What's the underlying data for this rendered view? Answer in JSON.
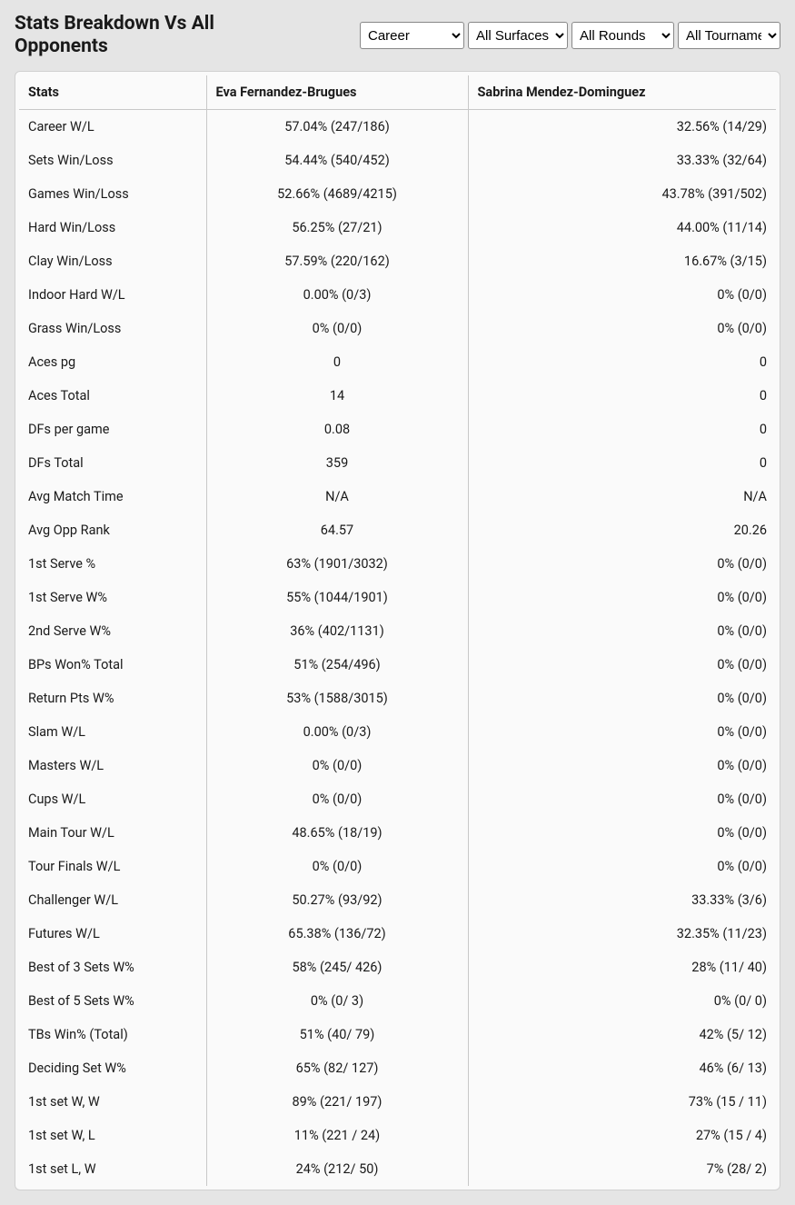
{
  "header": {
    "title": "Stats Breakdown Vs All Opponents"
  },
  "filters": {
    "career": {
      "selected": "Career",
      "options": [
        "Career"
      ]
    },
    "surface": {
      "selected": "All Surfaces",
      "options": [
        "All Surfaces"
      ]
    },
    "rounds": {
      "selected": "All Rounds",
      "options": [
        "All Rounds"
      ]
    },
    "tournaments": {
      "selected": "All Tournaments",
      "options": [
        "All Tournaments"
      ]
    }
  },
  "table": {
    "columns": {
      "stats": "Stats",
      "player1": "Eva Fernandez-Brugues",
      "player2": "Sabrina Mendez-Dominguez"
    },
    "rows": [
      {
        "stat": "Career W/L",
        "p1": "57.04% (247/186)",
        "p2": "32.56% (14/29)"
      },
      {
        "stat": "Sets Win/Loss",
        "p1": "54.44% (540/452)",
        "p2": "33.33% (32/64)"
      },
      {
        "stat": "Games Win/Loss",
        "p1": "52.66% (4689/4215)",
        "p2": "43.78% (391/502)"
      },
      {
        "stat": "Hard Win/Loss",
        "p1": "56.25% (27/21)",
        "p2": "44.00% (11/14)"
      },
      {
        "stat": "Clay Win/Loss",
        "p1": "57.59% (220/162)",
        "p2": "16.67% (3/15)"
      },
      {
        "stat": "Indoor Hard W/L",
        "p1": "0.00% (0/3)",
        "p2": "0% (0/0)"
      },
      {
        "stat": "Grass Win/Loss",
        "p1": "0% (0/0)",
        "p2": "0% (0/0)"
      },
      {
        "stat": "Aces pg",
        "p1": "0",
        "p2": "0"
      },
      {
        "stat": "Aces Total",
        "p1": "14",
        "p2": "0"
      },
      {
        "stat": "DFs per game",
        "p1": "0.08",
        "p2": "0"
      },
      {
        "stat": "DFs Total",
        "p1": "359",
        "p2": "0"
      },
      {
        "stat": "Avg Match Time",
        "p1": "N/A",
        "p2": "N/A"
      },
      {
        "stat": "Avg Opp Rank",
        "p1": "64.57",
        "p2": "20.26"
      },
      {
        "stat": "1st Serve %",
        "p1": "63% (1901/3032)",
        "p2": "0% (0/0)"
      },
      {
        "stat": "1st Serve W%",
        "p1": "55% (1044/1901)",
        "p2": "0% (0/0)"
      },
      {
        "stat": "2nd Serve W%",
        "p1": "36% (402/1131)",
        "p2": "0% (0/0)"
      },
      {
        "stat": "BPs Won% Total",
        "p1": "51% (254/496)",
        "p2": "0% (0/0)"
      },
      {
        "stat": "Return Pts W%",
        "p1": "53% (1588/3015)",
        "p2": "0% (0/0)"
      },
      {
        "stat": "Slam W/L",
        "p1": "0.00% (0/3)",
        "p2": "0% (0/0)"
      },
      {
        "stat": "Masters W/L",
        "p1": "0% (0/0)",
        "p2": "0% (0/0)"
      },
      {
        "stat": "Cups W/L",
        "p1": "0% (0/0)",
        "p2": "0% (0/0)"
      },
      {
        "stat": "Main Tour W/L",
        "p1": "48.65% (18/19)",
        "p2": "0% (0/0)"
      },
      {
        "stat": "Tour Finals W/L",
        "p1": "0% (0/0)",
        "p2": "0% (0/0)"
      },
      {
        "stat": "Challenger W/L",
        "p1": "50.27% (93/92)",
        "p2": "33.33% (3/6)"
      },
      {
        "stat": "Futures W/L",
        "p1": "65.38% (136/72)",
        "p2": "32.35% (11/23)"
      },
      {
        "stat": "Best of 3 Sets W%",
        "p1": "58% (245/ 426)",
        "p2": "28% (11/ 40)"
      },
      {
        "stat": "Best of 5 Sets W%",
        "p1": "0% (0/ 3)",
        "p2": "0% (0/ 0)"
      },
      {
        "stat": "TBs Win% (Total)",
        "p1": "51% (40/ 79)",
        "p2": "42% (5/ 12)"
      },
      {
        "stat": "Deciding Set W%",
        "p1": "65% (82/ 127)",
        "p2": "46% (6/ 13)"
      },
      {
        "stat": "1st set W, W",
        "p1": "89% (221/ 197)",
        "p2": "73% (15 / 11)"
      },
      {
        "stat": "1st set W, L",
        "p1": "11% (221 / 24)",
        "p2": "27% (15 / 4)"
      },
      {
        "stat": "1st set L, W",
        "p1": "24% (212/ 50)",
        "p2": "7% (28/ 2)"
      }
    ]
  },
  "style": {
    "background_color": "#e5e5e5",
    "table_background": "#fafafa",
    "border_color": "#c8c8c8",
    "text_color": "#1a1a1a",
    "title_fontsize": 21,
    "cell_fontsize": 14.5
  }
}
